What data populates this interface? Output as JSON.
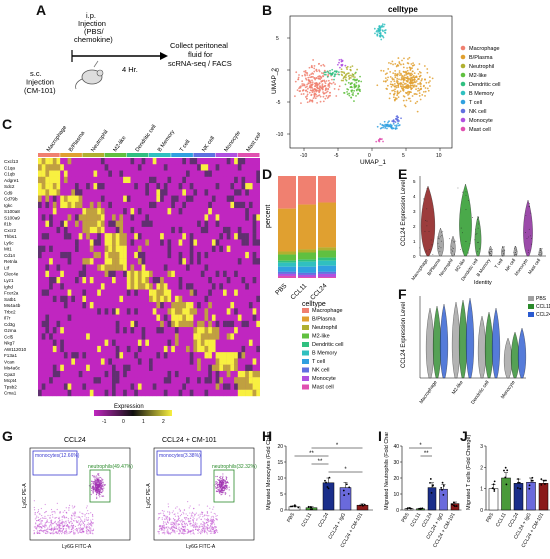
{
  "panels": {
    "A": "A",
    "B": "B",
    "C": "C",
    "D": "D",
    "E": "E",
    "F": "F",
    "G": "G",
    "H": "H",
    "I": "I",
    "J": "J"
  },
  "panel_a": {
    "ip_label": "i.p.\nInjection\n(PBS/\nchemokine)",
    "collect_label": "Collect peritoneal\nfluid for\nscRNA-seq / FACS",
    "sc_label": "s.c.\nInjection\n(CM-101)",
    "time_label": "4 Hr."
  },
  "celltypes": [
    {
      "name": "Macrophage",
      "color": "#f08070"
    },
    {
      "name": "B/Plasma",
      "color": "#e0a030"
    },
    {
      "name": "Neutrophil",
      "color": "#b0b030"
    },
    {
      "name": "M2-like",
      "color": "#60c040"
    },
    {
      "name": "Dendritic cell",
      "color": "#30c080"
    },
    {
      "name": "B Memory",
      "color": "#30c0c0"
    },
    {
      "name": "T cell",
      "color": "#30a0e0"
    },
    {
      "name": "NK cell",
      "color": "#6070e0"
    },
    {
      "name": "Monocyte",
      "color": "#b050e0"
    },
    {
      "name": "Mast cell",
      "color": "#e050b0"
    }
  ],
  "panel_b": {
    "title": "celltype",
    "xlabel": "UMAP_1",
    "ylabel": "UMAP_2",
    "xticks": [
      "-10",
      "-5",
      "0",
      "5",
      "10"
    ],
    "yticks": [
      "-10",
      "-5",
      "0",
      "5"
    ]
  },
  "panel_c": {
    "columns": [
      "Macrophage",
      "B/Plasma",
      "Neutrophil",
      "M2-like",
      "Dendritic cell",
      "B Memory",
      "T cell",
      "NK cell",
      "Monocyte",
      "Mast cell"
    ],
    "genes": [
      "Cxcl13",
      "C1qa",
      "C1qb",
      "Adgre1",
      "Sdc2",
      "Cd9",
      "Cd79b",
      "Igkc",
      "S100a8",
      "S100a9",
      "Il1b",
      "Cxcr2",
      "Thbs1",
      "Ly6c",
      "Mt1",
      "Cd14",
      "Retnla",
      "Ltf",
      "Clec4e",
      "Lyz1",
      "Ighd",
      "Fcer2a",
      "Satb1",
      "Ms4a4b",
      "Trbc2",
      "Il7r",
      "Cd3g",
      "Gzma",
      "Ccl5",
      "Nkg7",
      "AW112010",
      "F13a1",
      "Vcan",
      "Ms4a6c",
      "Cpa3",
      "Mcpt4",
      "Tpsb2",
      "Cma1"
    ],
    "legend_title": "Expression",
    "legend_ticks": [
      "-1",
      "0",
      "1",
      "2"
    ]
  },
  "chart_data": [
    {
      "type": "bar",
      "panel": "D",
      "ylabel": "percent",
      "categories": [
        "PBS",
        "CCL11",
        "CCL24"
      ],
      "legend_title": "celltype",
      "series": [
        {
          "name": "Macrophage",
          "values": [
            32,
            28,
            26
          ]
        },
        {
          "name": "B/Plasma",
          "values": [
            42,
            44,
            44
          ]
        },
        {
          "name": "Neutrophil",
          "values": [
            3,
            3,
            3
          ]
        },
        {
          "name": "M2-like",
          "values": [
            6,
            7,
            7
          ]
        },
        {
          "name": "Dendritic cell",
          "values": [
            2,
            2,
            3
          ]
        },
        {
          "name": "B Memory",
          "values": [
            4,
            5,
            5
          ]
        },
        {
          "name": "T cell",
          "values": [
            5,
            6,
            6
          ]
        },
        {
          "name": "NK cell",
          "values": [
            2,
            2,
            2
          ]
        },
        {
          "name": "Monocyte",
          "values": [
            2,
            2,
            3
          ]
        },
        {
          "name": "Mast cell",
          "values": [
            2,
            1,
            1
          ]
        }
      ]
    },
    {
      "type": "bar",
      "panel": "H",
      "ylabel": "Migrated Monocytes (Fold Change)",
      "categories": [
        "PBS",
        "CCL11",
        "CCL24",
        "CCL24 + IgG",
        "CCL24 + CM-101"
      ],
      "values": [
        1,
        0.7,
        8.5,
        7,
        1.5
      ],
      "errors": [
        0.3,
        0.3,
        1.5,
        1.6,
        0.4
      ],
      "ylim": [
        0,
        20
      ],
      "yticks": [
        "0",
        "5",
        "10",
        "15",
        "20"
      ],
      "colors": [
        "#ffffff",
        "#4a9a3a",
        "#1a2e8a",
        "#6a6adc",
        "#8a1a1a"
      ],
      "significance": [
        "*",
        "**",
        "**",
        "*"
      ]
    },
    {
      "type": "bar",
      "panel": "I",
      "ylabel": "Migrated Neutrophils (Fold Change)",
      "categories": [
        "PBS",
        "CCL11",
        "CCL24",
        "CCL24 + IgG",
        "CCL24 + CM-101"
      ],
      "values": [
        1,
        0.8,
        14,
        13,
        4
      ],
      "errors": [
        0.4,
        0.3,
        3,
        3,
        1
      ],
      "ylim": [
        0,
        40
      ],
      "yticks": [
        "0",
        "10",
        "20",
        "30",
        "40"
      ],
      "colors": [
        "#ffffff",
        "#4a9a3a",
        "#1a2e8a",
        "#6a6adc",
        "#8a1a1a"
      ],
      "significance": [
        "*",
        "**"
      ]
    },
    {
      "type": "bar",
      "panel": "J",
      "ylabel": "Migrated T cells (Fold Change)",
      "categories": [
        "PBS",
        "CCL11",
        "CCL24",
        "CCL24 + IgG",
        "CCL24 + CM-101"
      ],
      "values": [
        1,
        1.5,
        1.25,
        1.3,
        1.25
      ],
      "errors": [
        0.2,
        0.25,
        0.2,
        0.2,
        0.15
      ],
      "ylim": [
        0,
        3
      ],
      "yticks": [
        "0",
        "1",
        "2",
        "3"
      ],
      "colors": [
        "#ffffff",
        "#4a9a3a",
        "#1a2e8a",
        "#6a6adc",
        "#8a1a1a"
      ]
    }
  ],
  "panel_e": {
    "ylabel": "CCL24 Expression Level",
    "xlabel": "Identity",
    "ticks": [
      "0",
      "1",
      "2",
      "3",
      "4",
      "5"
    ]
  },
  "panel_f": {
    "ylabel": "CCL24 Expression Level",
    "groups": [
      "Macrophage",
      "M2-like",
      "Dendritic cell",
      "Monocyte"
    ],
    "legend": [
      {
        "name": "PBS",
        "color": "#a0a0a0"
      },
      {
        "name": "CCL11",
        "color": "#2a8a2a"
      },
      {
        "name": "CCL24",
        "color": "#2a5ad0"
      }
    ]
  },
  "panel_g": {
    "title_left": "CCL24",
    "title_right": "CCL24 + CM-101",
    "mono_left": "monocytes(12.66%)",
    "neut_left": "neutrophils(49.47%)",
    "mono_right": "monocytes(3.38%)",
    "neut_right": "neutrophils(32.32%)",
    "xlabel": "Ly6G FITC-A",
    "ylabel": "Ly6C PE-A"
  }
}
